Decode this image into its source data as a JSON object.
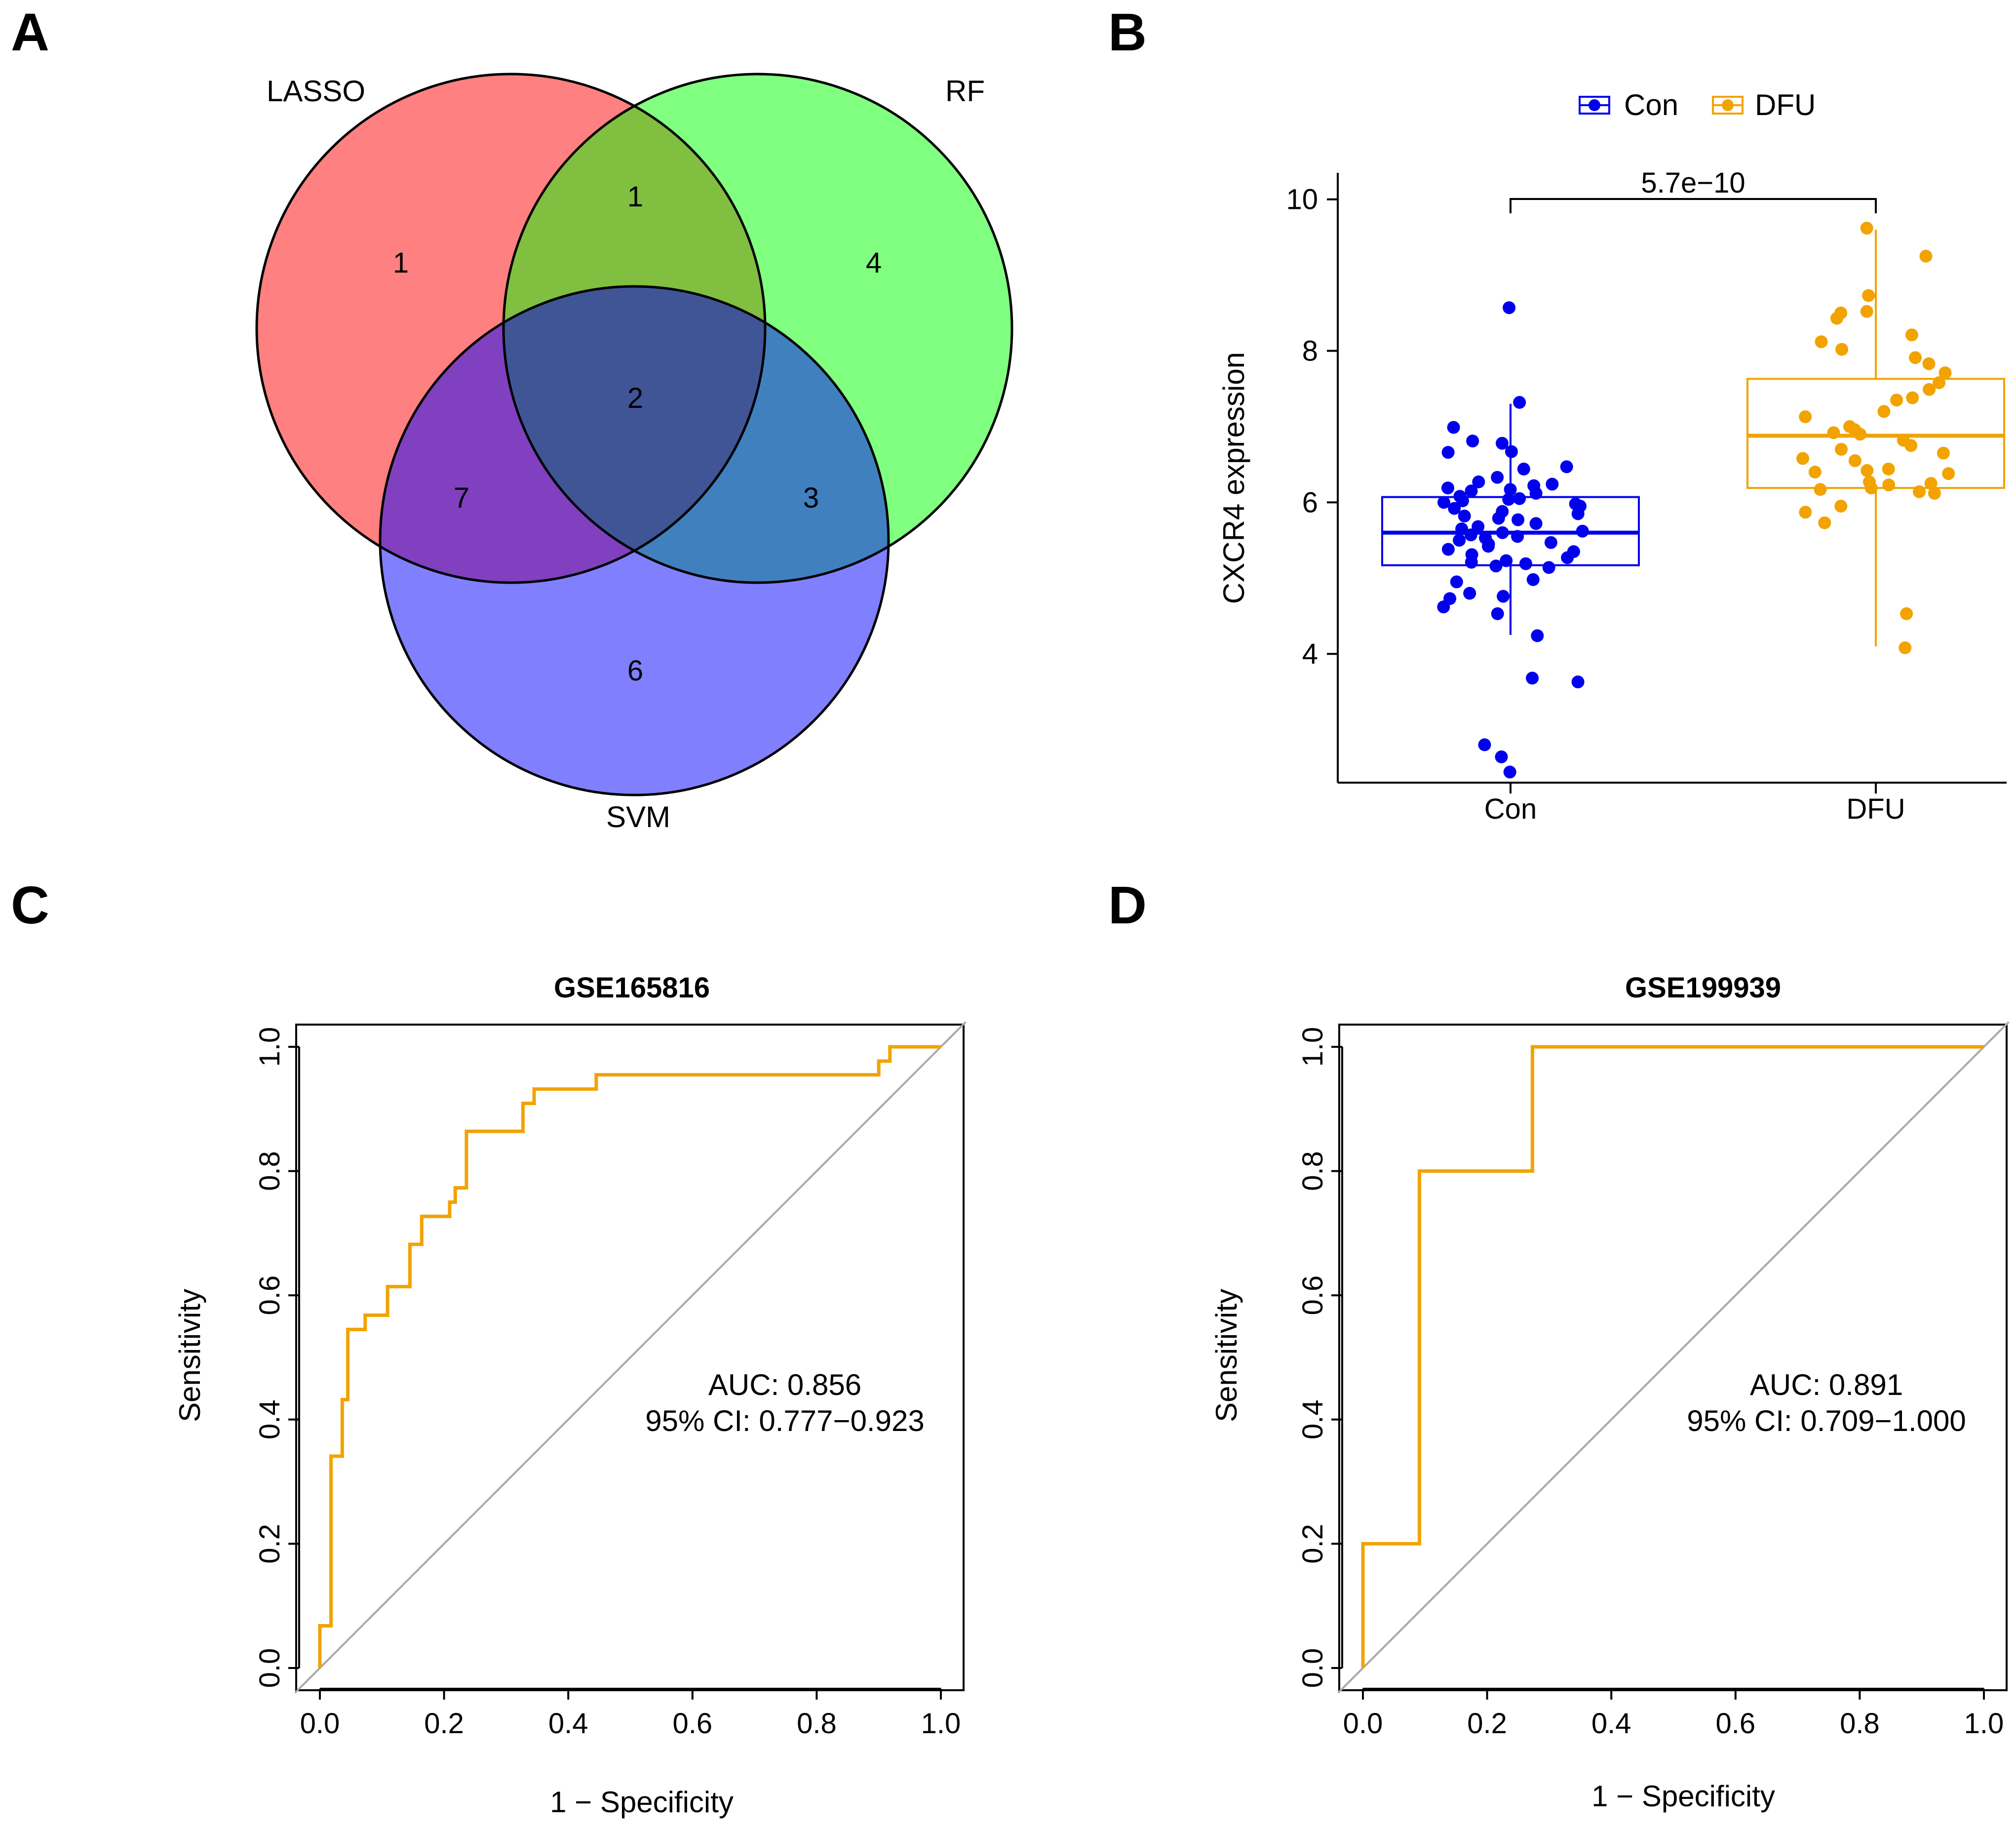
{
  "panels": {
    "a": "A",
    "b": "B",
    "c": "C",
    "d": "D"
  },
  "chart_data": [
    {
      "type": "venn",
      "sets": [
        "LASSO",
        "RF",
        "SVM"
      ],
      "colors": {
        "LASSO": "#ff8080",
        "RF": "#80ff80",
        "SVM": "#8080ff",
        "LASSO_RF": "#80bf40",
        "LASSO_SVM": "#8040bf",
        "RF_SVM": "#4080bf",
        "ALL": "#405596"
      },
      "regions": {
        "LASSO_only": "1",
        "RF_only": "4",
        "SVM_only": "6",
        "LASSO_RF": "1",
        "LASSO_SVM": "7",
        "RF_SVM": "3",
        "ALL": "2"
      }
    },
    {
      "type": "boxplot",
      "ylabel": "CXCR4 expression",
      "categories": [
        "Con",
        "DFU"
      ],
      "legend": [
        "Con",
        "DFU"
      ],
      "colors": {
        "Con": "#0000ee",
        "DFU": "#f2a300"
      },
      "ylim": [
        2.3,
        10.35
      ],
      "yticks": [
        "4",
        "6",
        "8",
        "10"
      ],
      "pvalue": "5.7e−10",
      "boxes": [
        {
          "name": "Con",
          "min": 4.25,
          "q1": 5.17,
          "median": 5.6,
          "q3": 6.07,
          "max": 7.3
        },
        {
          "name": "DFU",
          "min": 4.1,
          "q1": 6.19,
          "median": 6.88,
          "q3": 7.63,
          "max": 9.6
        }
      ],
      "points": {
        "Con": [
          8.57,
          7.32,
          6.99,
          6.81,
          6.78,
          6.67,
          6.66,
          6.47,
          6.44,
          6.33,
          6.27,
          6.24,
          6.22,
          6.19,
          6.17,
          6.15,
          6.12,
          6.08,
          6.05,
          6.04,
          6.02,
          6.0,
          5.98,
          5.95,
          5.92,
          5.88,
          5.85,
          5.82,
          5.79,
          5.77,
          5.72,
          5.68,
          5.65,
          5.62,
          5.6,
          5.57,
          5.55,
          5.53,
          5.5,
          5.47,
          5.45,
          5.42,
          5.38,
          5.35,
          5.31,
          5.27,
          5.23,
          5.21,
          5.19,
          5.16,
          5.14,
          4.98,
          4.95,
          4.8,
          4.76,
          4.73,
          4.62,
          4.53,
          4.24,
          3.68,
          3.63,
          2.8,
          2.64,
          2.44
        ],
        "DFU": [
          9.62,
          9.25,
          8.73,
          8.52,
          8.5,
          8.43,
          8.21,
          8.12,
          8.02,
          7.91,
          7.83,
          7.71,
          7.58,
          7.49,
          7.38,
          7.35,
          7.2,
          7.13,
          7.0,
          6.96,
          6.92,
          6.9,
          6.82,
          6.75,
          6.7,
          6.65,
          6.58,
          6.55,
          6.44,
          6.42,
          6.4,
          6.38,
          6.27,
          6.25,
          6.23,
          6.19,
          6.17,
          6.14,
          6.12,
          5.95,
          5.87,
          5.73,
          4.53,
          4.08
        ]
      }
    },
    {
      "type": "roc",
      "title": "GSE165816",
      "xlabel": "1 − Specificity",
      "ylabel": "Sensitivity",
      "xlim": [
        0,
        1
      ],
      "ylim": [
        0,
        1
      ],
      "xticks": [
        "0.0",
        "0.2",
        "0.4",
        "0.6",
        "0.8",
        "1.0"
      ],
      "yticks": [
        "0.0",
        "0.2",
        "0.4",
        "0.6",
        "0.8",
        "1.0"
      ],
      "auc_text": "AUC: 0.856",
      "ci_text": "95% CI: 0.777−0.923",
      "color": "#f2a300",
      "fpr": [
        0,
        0,
        0.018,
        0.018,
        0.036,
        0.036,
        0.045,
        0.045,
        0.073,
        0.073,
        0.109,
        0.109,
        0.145,
        0.145,
        0.164,
        0.164,
        0.209,
        0.209,
        0.218,
        0.218,
        0.236,
        0.236,
        0.327,
        0.327,
        0.345,
        0.345,
        0.445,
        0.445,
        0.9,
        0.9,
        0.918,
        0.918,
        1.0
      ],
      "tpr": [
        0,
        0.068,
        0.068,
        0.341,
        0.341,
        0.432,
        0.432,
        0.545,
        0.545,
        0.568,
        0.568,
        0.614,
        0.614,
        0.682,
        0.682,
        0.727,
        0.727,
        0.75,
        0.75,
        0.773,
        0.773,
        0.864,
        0.864,
        0.909,
        0.909,
        0.932,
        0.932,
        0.955,
        0.955,
        0.977,
        0.977,
        1.0,
        1.0
      ]
    },
    {
      "type": "roc",
      "title": "GSE199939",
      "xlabel": "1 − Specificity",
      "ylabel": "Sensitivity",
      "xlim": [
        0,
        1
      ],
      "ylim": [
        0,
        1
      ],
      "xticks": [
        "0.0",
        "0.2",
        "0.4",
        "0.6",
        "0.8",
        "1.0"
      ],
      "yticks": [
        "0.0",
        "0.2",
        "0.4",
        "0.6",
        "0.8",
        "1.0"
      ],
      "auc_text": "AUC: 0.891",
      "ci_text": "95% CI: 0.709−1.000",
      "color": "#f2a300",
      "fpr": [
        0,
        0,
        0.091,
        0.091,
        0.273,
        0.273,
        1.0
      ],
      "tpr": [
        0,
        0.2,
        0.2,
        0.8,
        0.8,
        1.0,
        1.0
      ]
    }
  ]
}
